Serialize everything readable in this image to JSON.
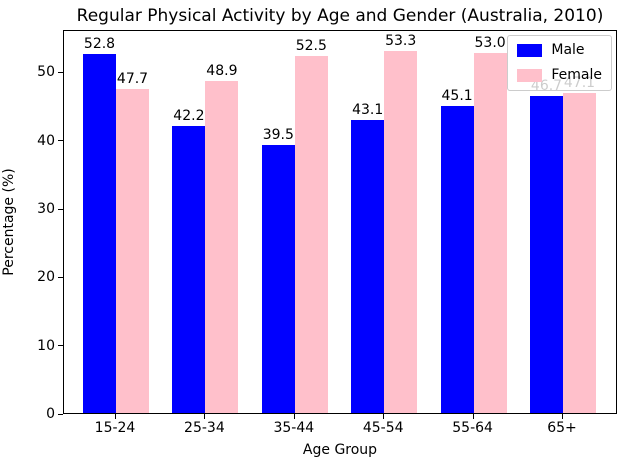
{
  "chart_data": {
    "type": "bar",
    "title": "Regular Physical Activity by Age and Gender (Australia, 2010)",
    "xlabel": "Age Group",
    "ylabel": "Percentage (%)",
    "categories": [
      "15-24",
      "25-34",
      "35-44",
      "45-54",
      "55-64",
      "65+"
    ],
    "series": [
      {
        "name": "Male",
        "color": "#0000ff",
        "values": [
          52.8,
          42.2,
          39.5,
          43.1,
          45.1,
          46.7
        ]
      },
      {
        "name": "Female",
        "color": "#ffc0cb",
        "values": [
          47.7,
          48.9,
          52.5,
          53.3,
          53.0,
          47.1
        ]
      }
    ],
    "bar_value_labels": [
      [
        "52.8",
        "42.2",
        "39.5",
        "43.1",
        "45.1",
        "46.7"
      ],
      [
        "47.7",
        "48.9",
        "52.5",
        "53.3",
        "53.0",
        "47.1"
      ]
    ],
    "yticks": [
      "0",
      "10",
      "20",
      "30",
      "40",
      "50"
    ],
    "ylim": [
      0,
      56.2
    ],
    "grid": false,
    "legend_position": "upper right"
  }
}
